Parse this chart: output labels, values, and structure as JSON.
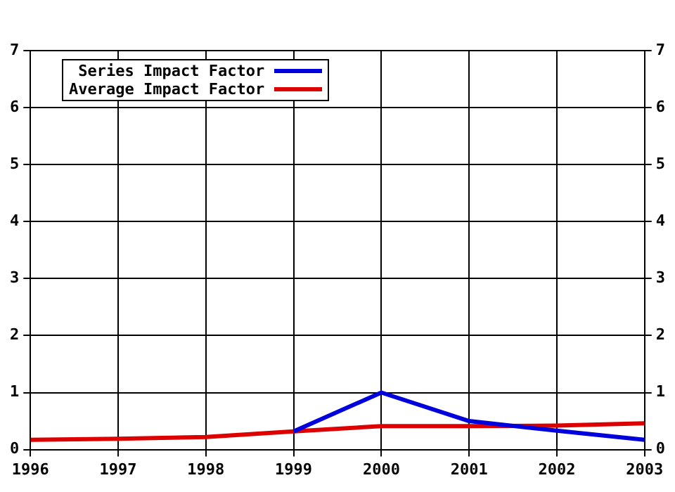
{
  "chart_data": {
    "type": "line",
    "xlim": [
      1996,
      2003
    ],
    "xticks": [
      1996,
      1997,
      1998,
      1999,
      2000,
      2001,
      2002,
      2003
    ],
    "ylim": [
      0,
      7
    ],
    "yticks": [
      0,
      1,
      2,
      3,
      4,
      5,
      6,
      7
    ],
    "y2lim": [
      0,
      7
    ],
    "y2ticks": [
      0,
      1,
      2,
      3,
      4,
      5,
      6,
      7
    ],
    "grid": true,
    "legend": "top left",
    "marker": "none",
    "line_style": "solid",
    "series": [
      {
        "name": "Series Impact Factor",
        "color": "#0000dd",
        "x": [
          1999,
          2000,
          2001,
          2002,
          2003
        ],
        "values": [
          0.32,
          1.0,
          0.5,
          0.33,
          0.17
        ]
      },
      {
        "name": "Average Impact Factor",
        "color": "#dd0000",
        "x": [
          1996,
          1997,
          1998,
          1999,
          2000,
          2001,
          2002,
          2003
        ],
        "values": [
          0.17,
          0.19,
          0.22,
          0.32,
          0.41,
          0.41,
          0.42,
          0.46
        ]
      }
    ]
  }
}
